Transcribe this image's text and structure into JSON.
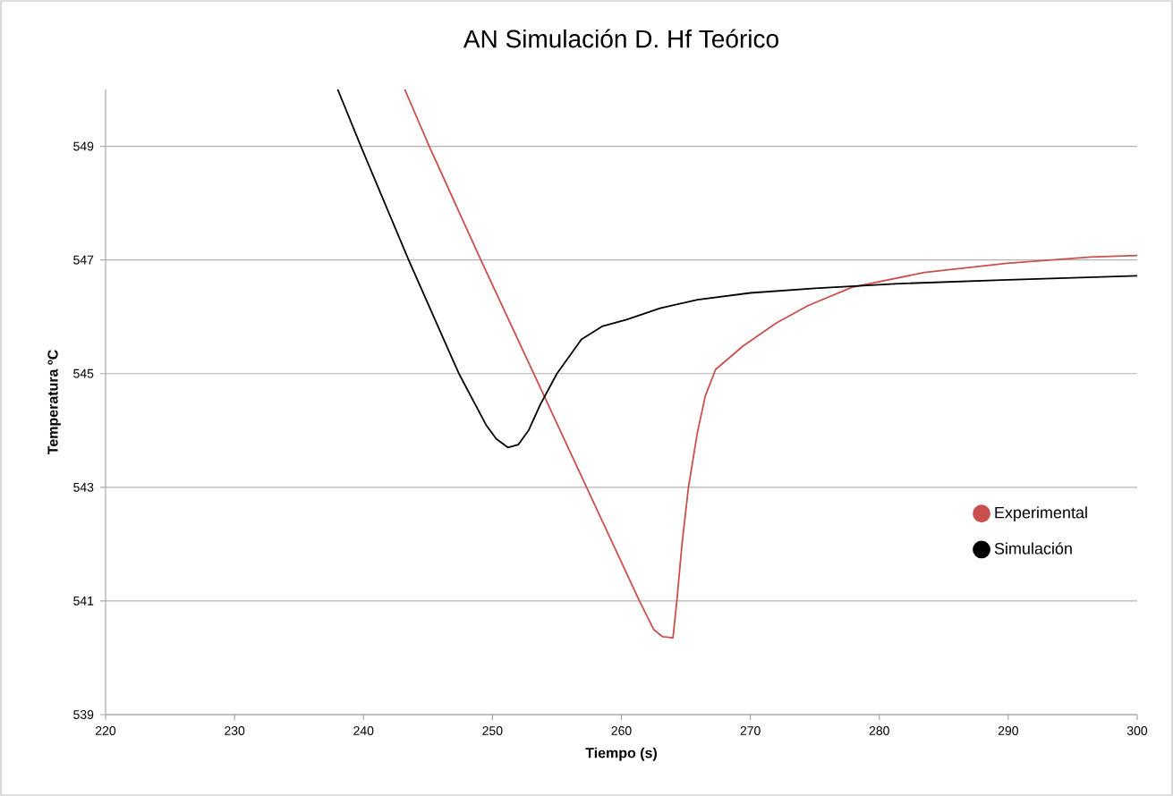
{
  "chart_data": {
    "type": "line",
    "title": "AN Simulación D. Hf Teórico",
    "xlabel": "Tiempo (s)",
    "ylabel": "Temperatura ºC",
    "xlim": [
      220,
      300
    ],
    "xticks": [
      220,
      230,
      240,
      250,
      260,
      270,
      280,
      290,
      300
    ],
    "ylim": [
      539,
      550
    ],
    "yticks": [
      539,
      541,
      543,
      545,
      547,
      549
    ],
    "grid": "y",
    "legend": "right",
    "marker": "none",
    "line_style": "solid",
    "series": [
      {
        "name": "Experimental",
        "color": "#c9504d",
        "x": [
          243.2,
          245.1,
          249.1,
          253.2,
          257.3,
          261.4,
          262.5,
          263.2,
          264.0,
          264.3,
          264.7,
          265.2,
          265.9,
          266.5,
          267.3,
          269.4,
          272.0,
          274.5,
          277.9,
          283.5,
          289.9,
          296.4,
          300
        ],
        "values": [
          550.0,
          549.0,
          547.0,
          545.0,
          543.0,
          541.0,
          540.5,
          540.37,
          540.35,
          541.0,
          542.0,
          543.0,
          543.97,
          544.6,
          545.07,
          545.48,
          545.89,
          546.2,
          546.52,
          546.78,
          546.94,
          547.05,
          547.08
        ]
      },
      {
        "name": "Simulación",
        "color": "#000000",
        "x": [
          238.0,
          239.8,
          243.5,
          247.4,
          249.5,
          250.3,
          251.2,
          252.0,
          252.8,
          253.7,
          255.0,
          256.9,
          258.5,
          260.4,
          263.0,
          265.9,
          270.0,
          275.0,
          281.2,
          290.0,
          300
        ],
        "values": [
          550.0,
          549.0,
          547.0,
          545.0,
          544.1,
          543.85,
          543.7,
          543.75,
          544.0,
          544.45,
          545.0,
          545.6,
          545.83,
          545.95,
          546.15,
          546.3,
          546.42,
          546.5,
          546.58,
          546.65,
          546.72
        ]
      }
    ]
  }
}
